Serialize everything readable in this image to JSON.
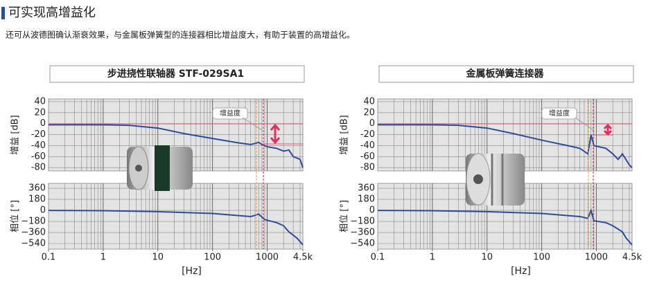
{
  "header": {
    "title": "可实现高增益化",
    "description": "还可从波德图确认渐衰效果，与金属板弹簧型的连接器相比增益度大，有助于装置的高增益化。"
  },
  "chart_data": [
    {
      "type": "line",
      "title": "步进挠性联轴器 STF-029SA1",
      "ylabel": "增益 [dB]",
      "annotation": "增益度",
      "xscale": "log",
      "xlim": [
        0.1,
        4500
      ],
      "ylim": [
        -86,
        45
      ],
      "yticks": [
        40,
        20,
        0,
        -20,
        -40,
        -60,
        -80
      ],
      "grid": true,
      "x": [
        0.1,
        1,
        3,
        10,
        30,
        100,
        300,
        500,
        600,
        700,
        800,
        1000,
        1500,
        2000,
        2500,
        3000,
        4000,
        4500
      ],
      "series": [
        {
          "name": "增益",
          "color": "#2a4d9b",
          "values": [
            -2,
            -2,
            -3,
            -8,
            -18,
            -27,
            -35,
            -38,
            -36,
            -34,
            -38,
            -42,
            -45,
            -50,
            -48,
            -60,
            -65,
            -80
          ]
        }
      ]
    },
    {
      "type": "line",
      "ylabel": "相位 [°]",
      "xlabel": "[Hz]",
      "xscale": "log",
      "xlim": [
        0.1,
        4500
      ],
      "ylim": [
        -630,
        440
      ],
      "xticks": [
        0.1,
        1,
        10,
        100,
        1000,
        {
          "value": 4500,
          "label": "4.5k"
        }
      ],
      "yticks": [
        360,
        180,
        0,
        {
          "value": -180,
          "label": "−180"
        },
        {
          "value": -360,
          "label": "−360"
        },
        {
          "value": -540,
          "label": "−540"
        }
      ],
      "grid": true,
      "x": [
        0.1,
        1,
        10,
        100,
        500,
        600,
        700,
        900,
        1500,
        2000,
        2500,
        3500,
        4500
      ],
      "series": [
        {
          "name": "相位",
          "color": "#2a4d9b",
          "values": [
            0,
            -5,
            -20,
            -50,
            -100,
            -80,
            -60,
            -150,
            -200,
            -250,
            -350,
            -450,
            -560
          ]
        }
      ]
    },
    {
      "type": "line",
      "title": "金属板弹簧连接器",
      "ylabel": "增益 [dB]",
      "annotation": "增益度",
      "xscale": "log",
      "xlim": [
        0.1,
        4500
      ],
      "ylim": [
        -86,
        45
      ],
      "yticks": [
        40,
        20,
        0,
        -20,
        -40,
        -60,
        -80
      ],
      "grid": true,
      "x": [
        0.1,
        1,
        3,
        10,
        30,
        100,
        300,
        500,
        700,
        800,
        900,
        1500,
        2000,
        2500,
        3000,
        4000,
        4500
      ],
      "series": [
        {
          "name": "增益",
          "color": "#2a4d9b",
          "values": [
            -2,
            -2,
            -3,
            -8,
            -18,
            -30,
            -40,
            -45,
            -55,
            -20,
            -40,
            -45,
            -55,
            -65,
            -55,
            -75,
            -80
          ]
        }
      ]
    },
    {
      "type": "line",
      "ylabel": "相位 [°]",
      "xlabel": "[Hz]",
      "xscale": "log",
      "xlim": [
        0.1,
        4500
      ],
      "ylim": [
        -630,
        440
      ],
      "xticks": [
        0.1,
        1,
        10,
        100,
        1000,
        {
          "value": 4500,
          "label": "4.5k"
        }
      ],
      "yticks": [
        360,
        180,
        0,
        {
          "value": -180,
          "label": "−180"
        },
        {
          "value": -360,
          "label": "−360"
        },
        {
          "value": -540,
          "label": "−540"
        }
      ],
      "grid": true,
      "x": [
        0.1,
        1,
        10,
        100,
        500,
        700,
        800,
        900,
        1500,
        2000,
        3000,
        3500,
        4500
      ],
      "series": [
        {
          "name": "相位",
          "color": "#2a4d9b",
          "values": [
            0,
            -5,
            -20,
            -50,
            -100,
            -130,
            0,
            -170,
            -200,
            -250,
            -350,
            -450,
            -560
          ]
        }
      ]
    }
  ]
}
